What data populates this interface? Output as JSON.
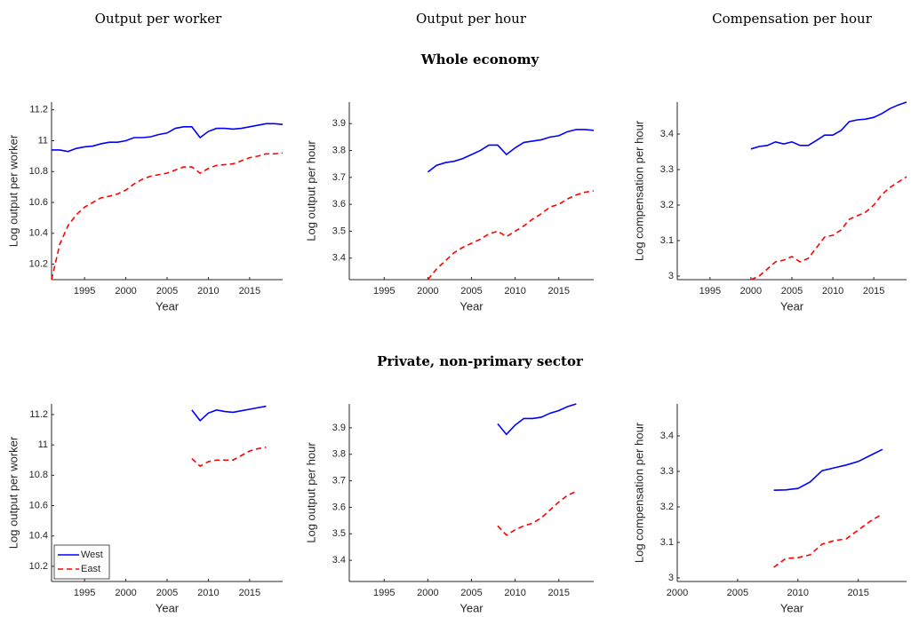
{
  "column_titles": [
    "Output per worker",
    "Output per hour",
    "Compensation per hour"
  ],
  "row_titles": [
    "Whole economy",
    "Private, non-primary sector"
  ],
  "chart_data": [
    {
      "type": "line",
      "xlabel": "Year",
      "ylabel": "Log output per worker",
      "x": [
        1991,
        1992,
        1993,
        1994,
        1995,
        1996,
        1997,
        1998,
        1999,
        2000,
        2001,
        2002,
        2003,
        2004,
        2005,
        2006,
        2007,
        2008,
        2009,
        2010,
        2011,
        2012,
        2013,
        2014,
        2015,
        2016,
        2017,
        2018,
        2019
      ],
      "series": [
        {
          "color": "#0000ff",
          "dashed": false,
          "values": [
            10.94,
            10.94,
            10.93,
            10.95,
            10.96,
            10.965,
            10.98,
            10.99,
            10.99,
            11.0,
            11.02,
            11.02,
            11.025,
            11.04,
            11.05,
            11.08,
            11.09,
            11.09,
            11.02,
            11.06,
            11.08,
            11.08,
            11.075,
            11.08,
            11.09,
            11.1,
            11.11,
            11.11,
            11.105
          ]
        },
        {
          "color": "#ff0000",
          "dashed": true,
          "values": [
            10.1,
            10.33,
            10.45,
            10.52,
            10.57,
            10.6,
            10.63,
            10.64,
            10.655,
            10.68,
            10.72,
            10.75,
            10.77,
            10.78,
            10.79,
            10.81,
            10.83,
            10.83,
            10.79,
            10.82,
            10.84,
            10.845,
            10.85,
            10.87,
            10.89,
            10.9,
            10.915,
            10.915,
            10.92
          ]
        }
      ],
      "xlim": [
        1991,
        2019
      ],
      "ylim": [
        10.1,
        11.25
      ],
      "xticks": [
        1995,
        2000,
        2005,
        2010,
        2015
      ],
      "yticks": [
        10.2,
        10.4,
        10.6,
        10.8,
        11,
        11.2
      ]
    },
    {
      "type": "line",
      "xlabel": "Year",
      "ylabel": "Log output per hour",
      "x": [
        2000,
        2001,
        2002,
        2003,
        2004,
        2005,
        2006,
        2007,
        2008,
        2009,
        2010,
        2011,
        2012,
        2013,
        2014,
        2015,
        2016,
        2017,
        2018,
        2019
      ],
      "series": [
        {
          "color": "#0000ff",
          "dashed": false,
          "values": [
            3.72,
            3.745,
            3.755,
            3.76,
            3.77,
            3.785,
            3.8,
            3.82,
            3.82,
            3.785,
            3.81,
            3.83,
            3.835,
            3.84,
            3.85,
            3.855,
            3.87,
            3.878,
            3.878,
            3.875
          ]
        },
        {
          "color": "#ff0000",
          "dashed": true,
          "values": [
            3.32,
            3.36,
            3.39,
            3.42,
            3.44,
            3.455,
            3.47,
            3.49,
            3.5,
            3.48,
            3.5,
            3.52,
            3.545,
            3.565,
            3.59,
            3.6,
            3.62,
            3.635,
            3.645,
            3.65
          ]
        }
      ],
      "xlim": [
        1991,
        2019
      ],
      "ylim": [
        3.32,
        3.98
      ],
      "xticks": [
        1995,
        2000,
        2005,
        2010,
        2015
      ],
      "yticks": [
        3.4,
        3.5,
        3.6,
        3.7,
        3.8,
        3.9
      ]
    },
    {
      "type": "line",
      "xlabel": "Year",
      "ylabel": "Log compensation per hour",
      "x": [
        2000,
        2001,
        2002,
        2003,
        2004,
        2005,
        2006,
        2007,
        2008,
        2009,
        2010,
        2011,
        2012,
        2013,
        2014,
        2015,
        2016,
        2017,
        2018,
        2019
      ],
      "series": [
        {
          "color": "#0000ff",
          "dashed": false,
          "values": [
            3.358,
            3.365,
            3.368,
            3.378,
            3.372,
            3.378,
            3.368,
            3.368,
            3.382,
            3.397,
            3.397,
            3.41,
            3.435,
            3.44,
            3.442,
            3.447,
            3.458,
            3.472,
            3.482,
            3.49
          ]
        },
        {
          "color": "#ff0000",
          "dashed": true,
          "values": [
            2.99,
            3.0,
            3.02,
            3.04,
            3.045,
            3.055,
            3.04,
            3.05,
            3.08,
            3.11,
            3.115,
            3.13,
            3.16,
            3.17,
            3.18,
            3.2,
            3.23,
            3.25,
            3.265,
            3.28
          ]
        }
      ],
      "xlim": [
        1991,
        2019
      ],
      "ylim": [
        2.99,
        3.49
      ],
      "xticks": [
        1995,
        2000,
        2005,
        2010,
        2015
      ],
      "yticks": [
        3,
        3.1,
        3.2,
        3.3,
        3.4
      ]
    },
    {
      "type": "line",
      "xlabel": "Year",
      "ylabel": "Log output per worker",
      "x": [
        2008,
        2009,
        2010,
        2011,
        2012,
        2013,
        2014,
        2015,
        2016,
        2017
      ],
      "series": [
        {
          "name": "West",
          "color": "#0000ff",
          "dashed": false,
          "values": [
            11.23,
            11.16,
            11.21,
            11.23,
            11.22,
            11.215,
            11.225,
            11.235,
            11.245,
            11.255
          ]
        },
        {
          "name": "East",
          "color": "#ff0000",
          "dashed": true,
          "values": [
            10.91,
            10.86,
            10.89,
            10.9,
            10.9,
            10.9,
            10.93,
            10.96,
            10.975,
            10.985
          ]
        }
      ],
      "legend": "lower left",
      "xlim": [
        1991,
        2019
      ],
      "ylim": [
        10.1,
        11.27
      ],
      "xticks": [
        1995,
        2000,
        2005,
        2010,
        2015
      ],
      "yticks": [
        10.2,
        10.4,
        10.6,
        10.8,
        11,
        11.2
      ]
    },
    {
      "type": "line",
      "xlabel": "Year",
      "ylabel": "Log output per hour",
      "x": [
        2008,
        2009,
        2010,
        2011,
        2012,
        2013,
        2014,
        2015,
        2016,
        2017
      ],
      "series": [
        {
          "color": "#0000ff",
          "dashed": false,
          "values": [
            3.915,
            3.875,
            3.91,
            3.935,
            3.935,
            3.94,
            3.955,
            3.965,
            3.98,
            3.99
          ]
        },
        {
          "color": "#ff0000",
          "dashed": true,
          "values": [
            3.53,
            3.495,
            3.515,
            3.53,
            3.54,
            3.56,
            3.59,
            3.62,
            3.645,
            3.66
          ]
        }
      ],
      "xlim": [
        1991,
        2019
      ],
      "ylim": [
        3.32,
        3.99
      ],
      "xticks": [
        1995,
        2000,
        2005,
        2010,
        2015
      ],
      "yticks": [
        3.4,
        3.5,
        3.6,
        3.7,
        3.8,
        3.9
      ]
    },
    {
      "type": "line",
      "xlabel": "Year",
      "ylabel": "Log compensation per hour",
      "x": [
        2008,
        2009,
        2010,
        2011,
        2012,
        2013,
        2014,
        2015,
        2016,
        2017
      ],
      "series": [
        {
          "color": "#0000ff",
          "dashed": false,
          "values": [
            3.247,
            3.248,
            3.252,
            3.27,
            3.302,
            3.31,
            3.318,
            3.328,
            3.345,
            3.362
          ]
        },
        {
          "color": "#ff0000",
          "dashed": true,
          "values": [
            3.03,
            3.055,
            3.057,
            3.065,
            3.095,
            3.105,
            3.11,
            3.135,
            3.16,
            3.18
          ]
        }
      ],
      "xlim": [
        2000,
        2019
      ],
      "ylim": [
        2.99,
        3.49
      ],
      "xticks": [
        2000,
        2005,
        2010,
        2015
      ],
      "yticks": [
        3,
        3.1,
        3.2,
        3.3,
        3.4
      ]
    }
  ]
}
